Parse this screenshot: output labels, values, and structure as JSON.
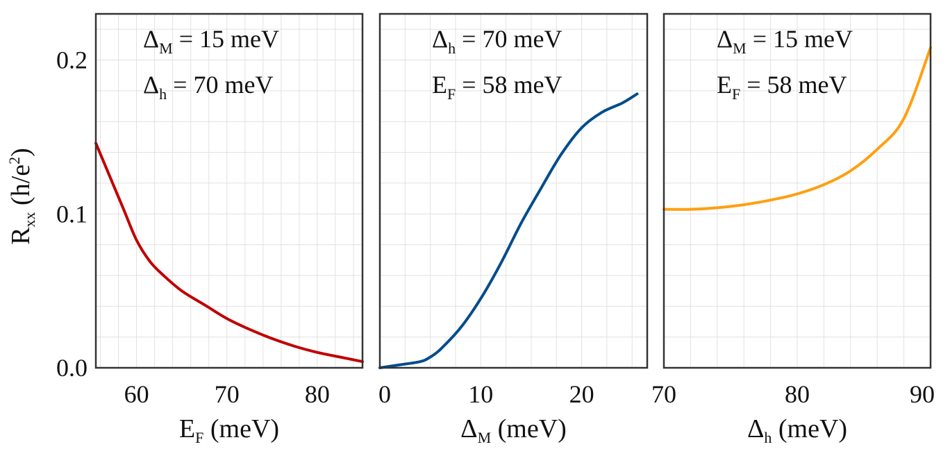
{
  "chart_data": [
    {
      "type": "line",
      "x": [
        55.5,
        57,
        58.5,
        60,
        61.5,
        63,
        65,
        67.5,
        70,
        72.5,
        75,
        77.5,
        80,
        82.5,
        85
      ],
      "values": [
        0.146,
        0.125,
        0.104,
        0.083,
        0.069,
        0.06,
        0.05,
        0.041,
        0.032,
        0.025,
        0.019,
        0.014,
        0.01,
        0.007,
        0.004
      ],
      "xlim": [
        55.5,
        85
      ],
      "ylim": [
        0,
        0.23
      ],
      "xticks": [
        60,
        70,
        80
      ],
      "xtick_labels": [
        "60",
        "70",
        "80"
      ],
      "xlabel": "E",
      "xlabel_sub": "F",
      "xlabel_unit": "(meV)",
      "ylabel": "R",
      "ylabel_sub": "xx",
      "ylabel_unit": "(h/e",
      "ylabel_sup": "2",
      "ylabel_close": ")",
      "yticks": [
        0,
        0.1,
        0.2
      ],
      "ytick_labels": [
        "0.0",
        "0.1",
        "0.2"
      ],
      "color": "#c00000",
      "annotations": [
        {
          "sym": "Δ",
          "sub": "M",
          "text": "= 15 meV"
        },
        {
          "sym": "Δ",
          "sub": "h",
          "text": "= 70  meV"
        }
      ]
    },
    {
      "type": "line",
      "x": [
        0,
        2,
        4,
        5,
        6,
        8,
        10,
        12,
        14,
        16,
        18,
        20,
        22,
        24,
        25.5
      ],
      "values": [
        0.0,
        0.002,
        0.004,
        0.007,
        0.012,
        0.026,
        0.045,
        0.068,
        0.094,
        0.117,
        0.139,
        0.156,
        0.166,
        0.172,
        0.178
      ],
      "xlim": [
        0,
        26.5
      ],
      "ylim": [
        0,
        0.23
      ],
      "xticks": [
        0,
        10,
        20
      ],
      "xtick_labels": [
        "0",
        "10",
        "20"
      ],
      "xlabel": "Δ",
      "xlabel_sub": "M",
      "xlabel_unit": "(meV)",
      "color": "#004c8c",
      "annotations": [
        {
          "sym": "Δ",
          "sub": "h",
          "text": "= 70 meV"
        },
        {
          "sym": "E",
          "sub": "F",
          "text": "  = 58 meV"
        }
      ]
    },
    {
      "type": "line",
      "x": [
        70,
        72,
        74,
        76,
        78,
        80,
        82,
        84,
        86,
        88,
        90
      ],
      "values": [
        0.103,
        0.103,
        0.104,
        0.106,
        0.109,
        0.113,
        0.119,
        0.128,
        0.142,
        0.162,
        0.208
      ],
      "xlim": [
        70,
        90
      ],
      "ylim": [
        0,
        0.23
      ],
      "xticks": [
        70,
        80,
        90
      ],
      "xtick_labels": [
        "70",
        "80",
        "90"
      ],
      "xlabel": "Δ",
      "xlabel_sub": "h",
      "xlabel_unit": "(meV)",
      "color": "#ff9f10",
      "annotations": [
        {
          "sym": "Δ",
          "sub": "M",
          "text": "= 15 meV"
        },
        {
          "sym": "E",
          "sub": "F",
          "text": "  = 58 meV"
        }
      ]
    }
  ]
}
